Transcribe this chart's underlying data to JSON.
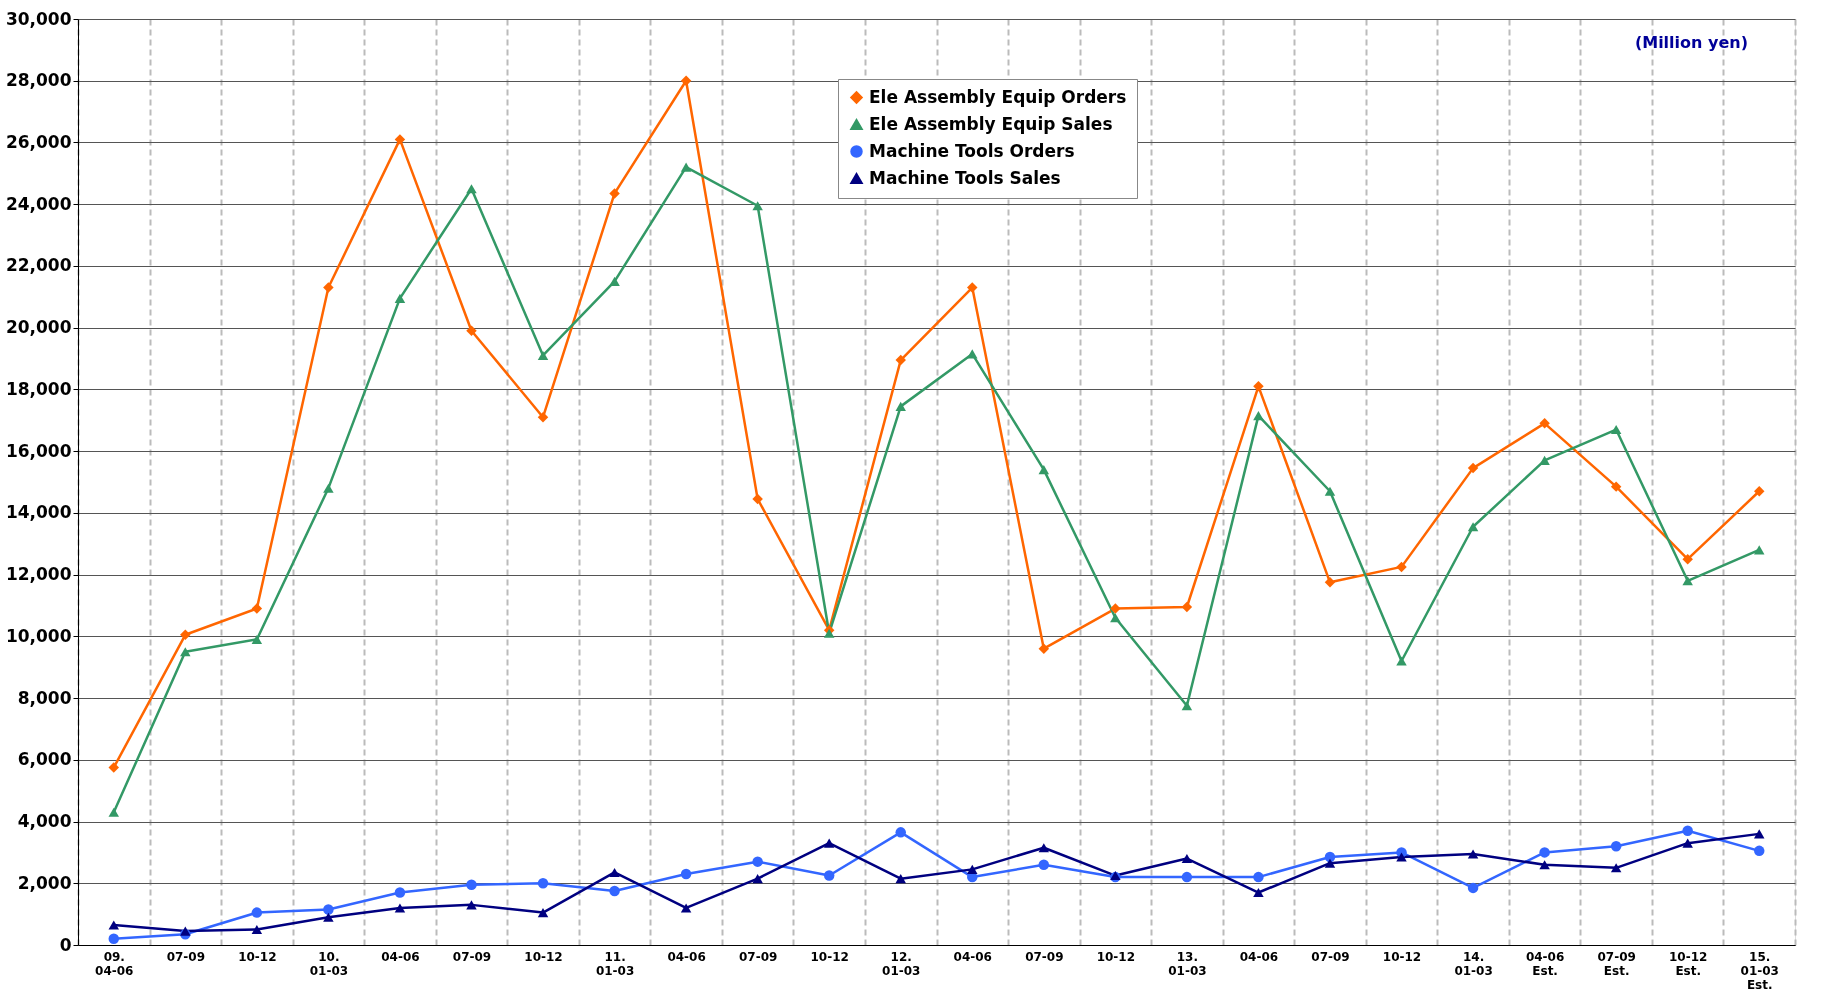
{
  "chart_data": {
    "type": "line",
    "categories": [
      "09.\n04-06",
      "07-09",
      "10-12",
      "10.\n01-03",
      "04-06",
      "07-09",
      "10-12",
      "11.\n01-03",
      "04-06",
      "07-09",
      "10-12",
      "12.\n01-03",
      "04-06",
      "07-09",
      "10-12",
      "13.\n01-03",
      "04-06",
      "07-09",
      "10-12",
      "14.\n01-03",
      "04-06\nEst.",
      "07-09\nEst.",
      "10-12\nEst.",
      "15.\n01-03\nEst."
    ],
    "series": [
      {
        "name": "Ele Assembly Equip Orders",
        "color": "#ff6600",
        "marker": "diamond",
        "values": [
          5750,
          10050,
          10900,
          21300,
          26100,
          19900,
          17100,
          24350,
          28000,
          14450,
          10200,
          18950,
          21300,
          9600,
          10900,
          10950,
          18100,
          11750,
          12250,
          15450,
          16900,
          14850,
          12500,
          14700
        ]
      },
      {
        "name": "Ele Assembly Equip Sales",
        "color": "#339966",
        "marker": "triangle",
        "values": [
          4300,
          9500,
          9900,
          14800,
          20950,
          24500,
          19100,
          21500,
          25200,
          23950,
          10100,
          17450,
          19150,
          15400,
          10600,
          7750,
          17150,
          14700,
          9200,
          13550,
          15700,
          16700,
          11800,
          12800
        ]
      },
      {
        "name": "Machine Tools Orders",
        "color": "#3366ff",
        "marker": "circle",
        "values": [
          200,
          350,
          1050,
          1150,
          1700,
          1950,
          2000,
          1750,
          2300,
          2700,
          2250,
          3650,
          2200,
          2600,
          2200,
          2200,
          2200,
          2850,
          3000,
          1850,
          3000,
          3200,
          3700,
          3050
        ]
      },
      {
        "name": "Machine Tools Sales",
        "color": "#000080",
        "marker": "triangle",
        "values": [
          650,
          450,
          500,
          900,
          1200,
          1300,
          1050,
          2350,
          1200,
          2150,
          3300,
          2150,
          2450,
          3150,
          2250,
          2800,
          1700,
          2650,
          2850,
          2950,
          2600,
          2500,
          3300,
          3600
        ]
      }
    ],
    "ylim": [
      0,
      30000
    ],
    "yticks": [
      0,
      {
        "value": 2000,
        "label": "2,000"
      },
      {
        "value": 4000,
        "label": "4,000"
      },
      {
        "value": 6000,
        "label": "6,000"
      },
      {
        "value": 8000,
        "label": "8,000"
      },
      {
        "value": 10000,
        "label": "10,000"
      },
      {
        "value": 12000,
        "label": "12,000"
      },
      {
        "value": 14000,
        "label": "14,000"
      },
      {
        "value": 16000,
        "label": "16,000"
      },
      {
        "value": 18000,
        "label": "18,000"
      },
      {
        "value": 20000,
        "label": "20,000"
      },
      {
        "value": 22000,
        "label": "22,000"
      },
      {
        "value": 24000,
        "label": "24,000"
      },
      {
        "value": 26000,
        "label": "26,000"
      },
      {
        "value": 28000,
        "label": "28,000"
      },
      {
        "value": 30000,
        "label": "30,000"
      }
    ],
    "grid": true,
    "legend": "top",
    "line_style": "solid",
    "annotations": [
      "(Million yen)"
    ]
  }
}
